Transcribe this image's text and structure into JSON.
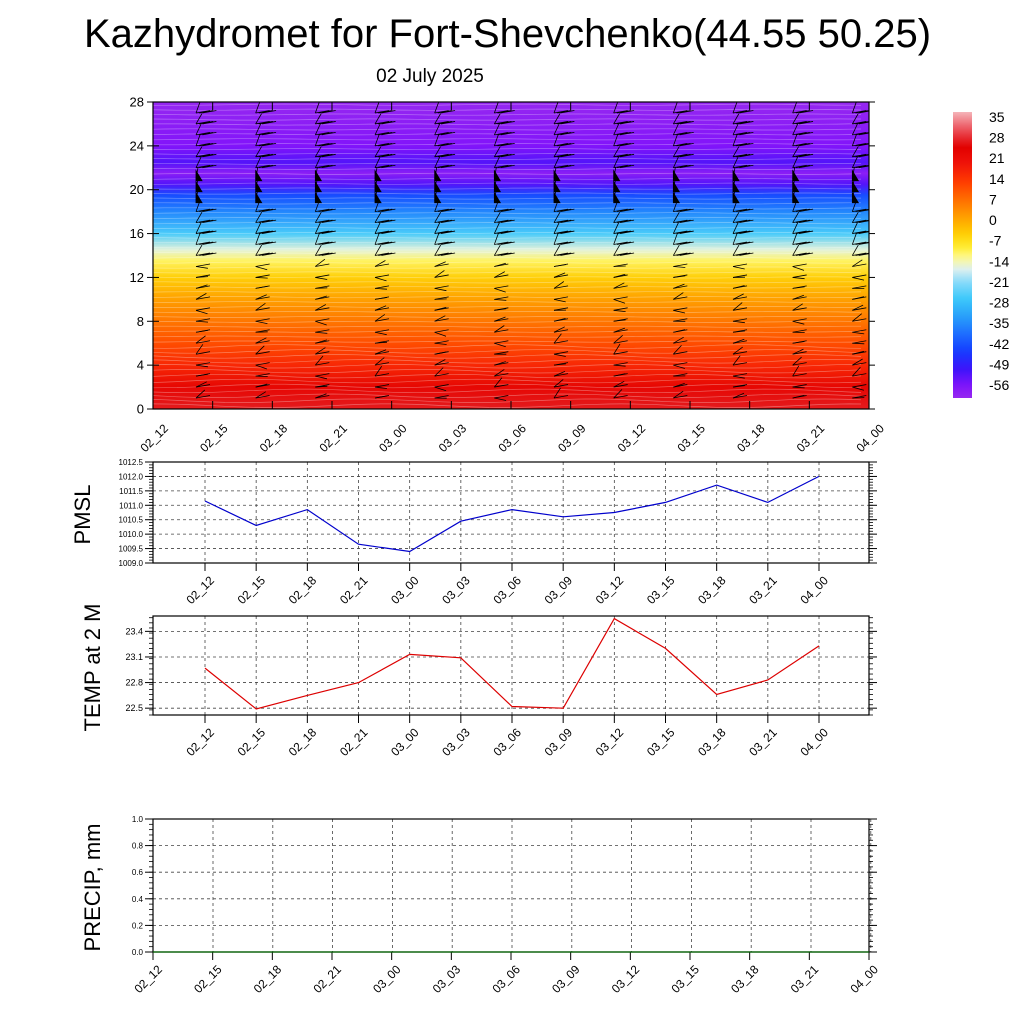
{
  "title": "Kazhydromet for Fort-Shevchenko(44.55 50.25)",
  "subtitle": "02 July 2025",
  "time_labels": [
    "02_12",
    "02_15",
    "02_18",
    "02_21",
    "03_00",
    "03_03",
    "03_06",
    "03_09",
    "03_12",
    "03_15",
    "03_18",
    "03_21",
    "04_00"
  ],
  "colors": {
    "pmsl_line": "#0000cc",
    "temp_line": "#dd0000",
    "precip_line": "#006600",
    "grid": "#444444"
  },
  "chart_data": [
    {
      "type": "heatmap",
      "name": "temperature cross-section with wind barbs",
      "x": [
        "02_12",
        "02_15",
        "02_18",
        "02_21",
        "03_00",
        "03_03",
        "03_06",
        "03_09",
        "03_12",
        "03_15",
        "03_18",
        "03_21",
        "04_00"
      ],
      "ylim": [
        0,
        28
      ],
      "yticks": [
        0,
        4,
        8,
        12,
        16,
        20,
        24,
        28
      ],
      "colorbar": {
        "labels": [
          35,
          28,
          21,
          14,
          7,
          0,
          -7,
          -14,
          -21,
          -28,
          -35,
          -42,
          -49,
          -56
        ],
        "range": [
          -60,
          38
        ]
      },
      "temperature_profile": [
        {
          "y": 0,
          "t": 28
        },
        {
          "y": 2,
          "t": 24
        },
        {
          "y": 4,
          "t": 17
        },
        {
          "y": 6,
          "t": 12
        },
        {
          "y": 8,
          "t": 7
        },
        {
          "y": 10,
          "t": 2
        },
        {
          "y": 12,
          "t": -4
        },
        {
          "y": 13.5,
          "t": -10
        },
        {
          "y": 14.5,
          "t": -15
        },
        {
          "y": 16,
          "t": -25
        },
        {
          "y": 18,
          "t": -35
        },
        {
          "y": 19.5,
          "t": -42
        },
        {
          "y": 20.5,
          "t": -52
        },
        {
          "y": 21.5,
          "t": -58
        },
        {
          "y": 22.5,
          "t": -52
        },
        {
          "y": 24,
          "t": -56
        },
        {
          "y": 28,
          "t": -60
        }
      ],
      "wind_levels": [
        1,
        2,
        3,
        4,
        5,
        6,
        7,
        8,
        9,
        10,
        11,
        12,
        13,
        14,
        15,
        16,
        17,
        18,
        19,
        20,
        21,
        22,
        23,
        24,
        25,
        26,
        27
      ]
    },
    {
      "type": "line",
      "ylabel": "PMSL",
      "x": [
        "02_12",
        "02_15",
        "02_18",
        "02_21",
        "03_00",
        "03_03",
        "03_06",
        "03_09",
        "03_12",
        "03_15",
        "03_18",
        "03_21",
        "04_00"
      ],
      "values": [
        1011.15,
        1010.3,
        1010.85,
        1009.65,
        1009.4,
        1010.45,
        1010.85,
        1010.6,
        1010.75,
        1011.1,
        1011.7,
        1011.1,
        1012.0
      ],
      "ylim": [
        1009.0,
        1012.5
      ],
      "yticks": [
        "1009.0",
        "1009.5",
        "1010.0",
        "1010.5",
        "1011.0",
        "1011.5",
        "1012.0",
        "1012.5"
      ]
    },
    {
      "type": "line",
      "ylabel": "TEMP at 2 M",
      "x": [
        "02_12",
        "02_15",
        "02_18",
        "02_21",
        "03_00",
        "03_03",
        "03_06",
        "03_09",
        "03_12",
        "03_15",
        "03_18",
        "03_21",
        "04_00"
      ],
      "values": [
        22.97,
        22.49,
        22.65,
        22.8,
        23.13,
        23.09,
        22.52,
        22.5,
        23.55,
        23.2,
        22.66,
        22.83,
        23.23
      ],
      "ylim": [
        22.42,
        23.58
      ],
      "yticks": [
        "22.5",
        "22.8",
        "23.1",
        "23.4"
      ]
    },
    {
      "type": "line",
      "ylabel": "PRECIP, mm",
      "x": [
        "02_12",
        "02_15",
        "02_18",
        "02_21",
        "03_00",
        "03_03",
        "03_06",
        "03_09",
        "03_12",
        "03_15",
        "03_18",
        "03_21",
        "04_00"
      ],
      "values": [
        0,
        0,
        0,
        0,
        0,
        0,
        0,
        0,
        0,
        0,
        0,
        0,
        0
      ],
      "ylim": [
        0,
        1.0
      ],
      "yticks": [
        "0.0",
        "0.2",
        "0.4",
        "0.6",
        "0.8",
        "1.0"
      ]
    }
  ]
}
